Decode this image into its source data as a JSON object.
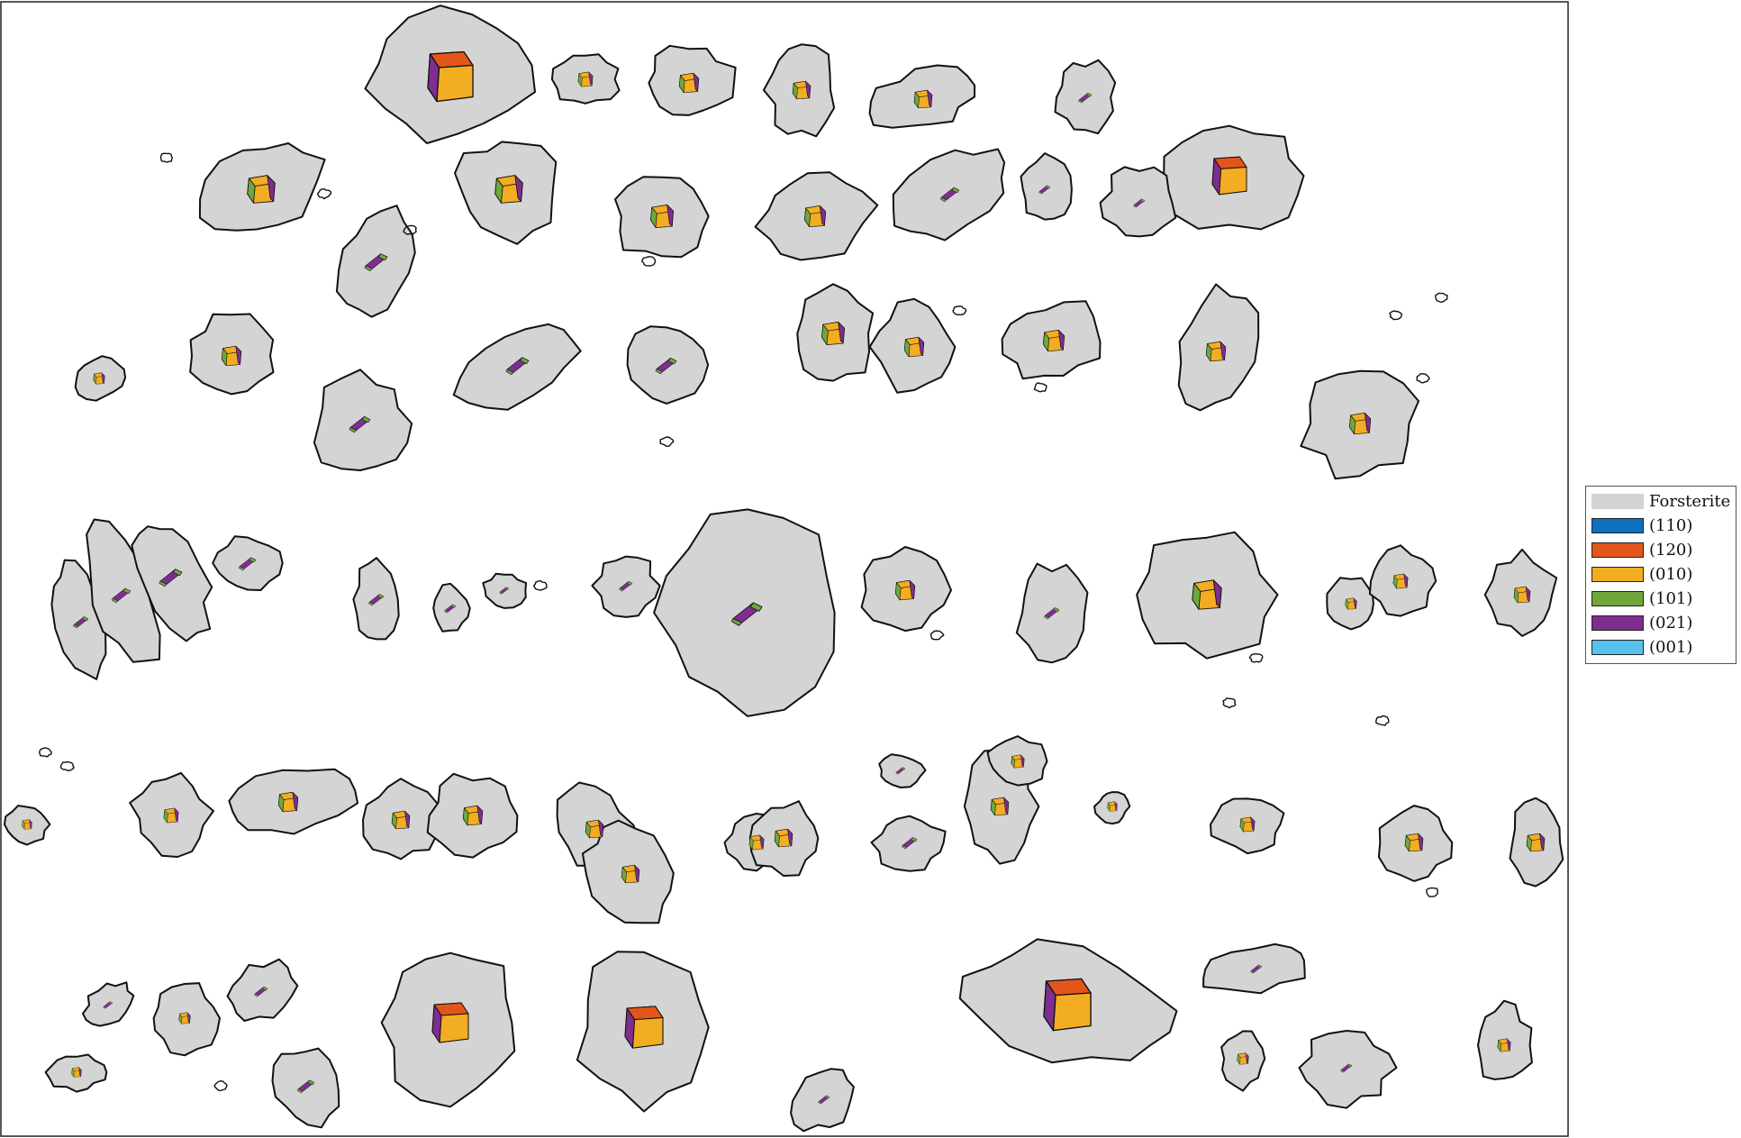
{
  "phase": {
    "name": "Forsterite",
    "color": "#d4d4d4"
  },
  "legend": {
    "items": [
      {
        "label": "Forsterite",
        "color": "#d4d4d4"
      },
      {
        "label": "(110)",
        "color": "#0f6fbf"
      },
      {
        "label": "(120)",
        "color": "#e3561b"
      },
      {
        "label": "(010)",
        "color": "#f2ad22"
      },
      {
        "label": "(101)",
        "color": "#6fa83a"
      },
      {
        "label": "(021)",
        "color": "#7d2e8e"
      },
      {
        "label": "(001)",
        "color": "#56c2ee"
      }
    ]
  },
  "facet_colors": {
    "f010": "#f2ad22",
    "f120": "#e3561b",
    "f021": "#7d2e8e",
    "f101": "#6fa83a"
  }
}
